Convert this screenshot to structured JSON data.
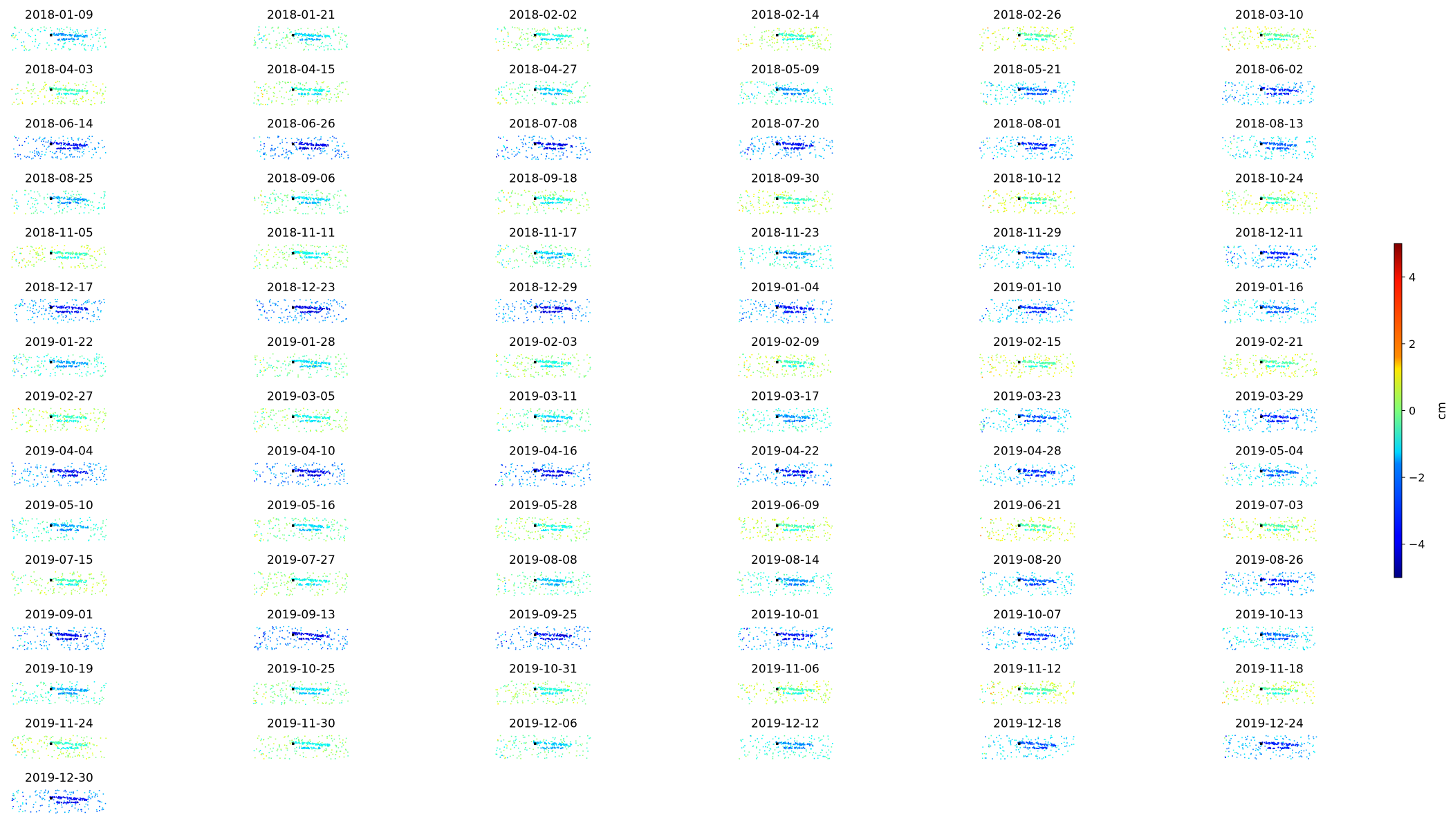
{
  "chart_data": {
    "type": "scatter",
    "description_kind": "small-multiples",
    "colormap": "jet",
    "dates": [
      "2018-01-09",
      "2018-01-21",
      "2018-02-02",
      "2018-02-14",
      "2018-02-26",
      "2018-03-10",
      "2018-04-03",
      "2018-04-15",
      "2018-04-27",
      "2018-05-09",
      "2018-05-21",
      "2018-06-02",
      "2018-06-14",
      "2018-06-26",
      "2018-07-08",
      "2018-07-20",
      "2018-08-01",
      "2018-08-13",
      "2018-08-25",
      "2018-09-06",
      "2018-09-18",
      "2018-09-30",
      "2018-10-12",
      "2018-10-24",
      "2018-11-05",
      "2018-11-11",
      "2018-11-17",
      "2018-11-23",
      "2018-11-29",
      "2018-12-11",
      "2018-12-17",
      "2018-12-23",
      "2018-12-29",
      "2019-01-04",
      "2019-01-10",
      "2019-01-16",
      "2019-01-22",
      "2019-01-28",
      "2019-02-03",
      "2019-02-09",
      "2019-02-15",
      "2019-02-21",
      "2019-02-27",
      "2019-03-05",
      "2019-03-11",
      "2019-03-17",
      "2019-03-23",
      "2019-03-29",
      "2019-04-04",
      "2019-04-10",
      "2019-04-16",
      "2019-04-22",
      "2019-04-28",
      "2019-05-04",
      "2019-05-10",
      "2019-05-16",
      "2019-05-28",
      "2019-06-09",
      "2019-06-21",
      "2019-07-03",
      "2019-07-15",
      "2019-07-27",
      "2019-08-08",
      "2019-08-14",
      "2019-08-20",
      "2019-08-26",
      "2019-09-01",
      "2019-09-13",
      "2019-09-25",
      "2019-10-01",
      "2019-10-07",
      "2019-10-13",
      "2019-10-19",
      "2019-10-25",
      "2019-10-31",
      "2019-11-06",
      "2019-11-12",
      "2019-11-18",
      "2019-11-24",
      "2019-11-30",
      "2019-12-06",
      "2019-12-12",
      "2019-12-18",
      "2019-12-24",
      "2019-12-30"
    ],
    "colorbar": {
      "label": "cm",
      "vmin": -5,
      "vmax": 5,
      "ticks": [
        -4,
        -2,
        0,
        2,
        4
      ],
      "tick_labels": [
        "−4",
        "−2",
        "0",
        "2",
        "4"
      ]
    },
    "axes": "off",
    "grid": false
  }
}
